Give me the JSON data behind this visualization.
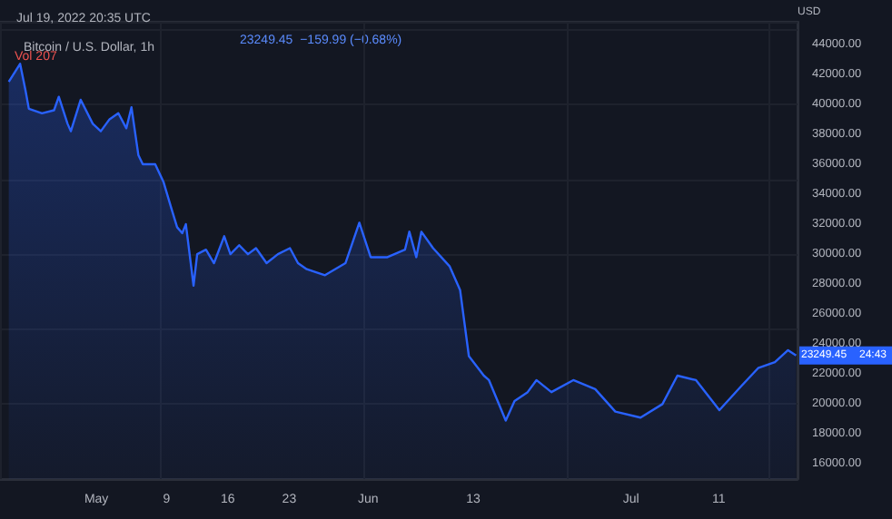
{
  "chart_data": {
    "type": "area",
    "title": "Bitcoin / U.S. Dollar, 1h",
    "subtitle": "Jul 19, 2022 20:35 UTC",
    "ylabel": "USD",
    "annotations": [
      "23249.45  −159.99 (−0.68%)",
      "Vol 207",
      {
        "text": "23249.45",
        "x": "2022-07-19T20:00",
        "y": 23249.45
      },
      "24:43"
    ],
    "x": [
      "2022-04-21T00:00",
      "2022-04-22T07:00",
      "2022-04-22T22:00",
      "2022-04-23T07:00",
      "2022-04-24T19:00",
      "2022-04-26T04:00",
      "2022-04-26T17:00",
      "2022-04-27T17:00",
      "2022-04-28T02:00",
      "2022-04-29T05:00",
      "2022-04-30T14:00",
      "2022-05-01T12:00",
      "2022-05-02T12:00",
      "2022-05-03T12:00",
      "2022-05-04T10:00",
      "2022-05-05T00:00",
      "2022-05-05T19:00",
      "2022-05-06T07:00",
      "2022-05-07T17:00",
      "2022-05-08T16:00",
      "2022-05-09T14:00",
      "2022-05-10T05:00",
      "2022-05-10T19:00",
      "2022-05-11T05:00",
      "2022-05-12T02:00",
      "2022-05-12T12:00",
      "2022-05-13T12:00",
      "2022-05-14T10:00",
      "2022-05-15T14:00",
      "2022-05-16T07:00",
      "2022-05-17T07:00",
      "2022-05-18T07:00",
      "2022-05-19T05:00",
      "2022-05-20T10:00",
      "2022-05-21T17:00",
      "2022-05-23T02:00",
      "2022-05-24T00:00",
      "2022-05-25T00:00",
      "2022-05-27T02:00",
      "2022-05-29T10:00",
      "2022-05-31T00:00",
      "2022-06-01T07:00",
      "2022-06-03T05:00",
      "2022-06-05T05:00",
      "2022-06-05T17:00",
      "2022-06-06T12:00",
      "2022-06-07T02:00",
      "2022-06-08T10:00",
      "2022-06-10T07:00",
      "2022-06-11T12:00",
      "2022-06-12T12:00",
      "2022-06-14T05:00",
      "2022-06-14T19:00",
      "2022-06-16T17:00",
      "2022-06-17T17:00",
      "2022-06-19T05:00",
      "2022-06-20T05:00",
      "2022-06-21T22:00",
      "2022-06-24T10:00",
      "2022-06-26T22:00",
      "2022-06-29T05:00",
      "2022-07-02T02:00",
      "2022-07-04T14:00",
      "2022-07-06T07:00",
      "2022-07-08T10:00",
      "2022-07-11T02:00",
      "2022-07-13T14:00",
      "2022-07-15T12:00",
      "2022-07-17T10:00",
      "2022-07-18T22:00",
      "2022-07-19T20:00"
    ],
    "series": [
      {
        "color": "#2962ff",
        "values": [
          41500,
          42700,
          40900,
          39700,
          39400,
          39600,
          40500,
          38700,
          38200,
          40300,
          38700,
          38200,
          39000,
          39400,
          38400,
          39800,
          36600,
          36000,
          36000,
          34800,
          33000,
          31800,
          31400,
          32000,
          27900,
          30000,
          30300,
          29400,
          31200,
          30000,
          30600,
          30000,
          30400,
          29400,
          30000,
          30400,
          29400,
          29000,
          28600,
          29400,
          32100,
          29800,
          29800,
          30300,
          31500,
          29800,
          31500,
          30400,
          29200,
          27600,
          23200,
          21900,
          21600,
          18900,
          20200,
          20800,
          21600,
          20800,
          21600,
          21000,
          19500,
          19100,
          20000,
          21900,
          21600,
          19600,
          21200,
          22400,
          22800,
          23600,
          23249.45
        ]
      }
    ],
    "xlim": [
      "2022-04-20T00:00",
      "2022-07-20T00:00"
    ],
    "xticks": [
      {
        "value": "2022-05-01",
        "label": "May"
      },
      {
        "value": "2022-05-09",
        "label": "9"
      },
      {
        "value": "2022-05-16",
        "label": "16"
      },
      {
        "value": "2022-05-23",
        "label": "23"
      },
      {
        "value": "2022-06-01",
        "label": "Jun"
      },
      {
        "value": "2022-06-13",
        "label": "13"
      },
      {
        "value": "2022-07-01",
        "label": "Jul"
      },
      {
        "value": "2022-07-11",
        "label": "11"
      }
    ],
    "ylim": [
      15000,
      45500
    ],
    "yticks": [
      {
        "value": 16000,
        "label": "16000.00"
      },
      {
        "value": 18000,
        "label": "18000.00"
      },
      {
        "value": 20000,
        "label": "20000.00"
      },
      {
        "value": 22000,
        "label": "22000.00"
      },
      {
        "value": 24000,
        "label": "24000.00"
      },
      {
        "value": 26000,
        "label": "26000.00"
      },
      {
        "value": 28000,
        "label": "28000.00"
      },
      {
        "value": 30000,
        "label": "30000.00"
      },
      {
        "value": 32000,
        "label": "32000.00"
      },
      {
        "value": 34000,
        "label": "34000.00"
      },
      {
        "value": 36000,
        "label": "36000.00"
      },
      {
        "value": 38000,
        "label": "38000.00"
      },
      {
        "value": 40000,
        "label": "40000.00"
      },
      {
        "value": 42000,
        "label": "42000.00"
      },
      {
        "value": 44000,
        "label": "44000.00"
      }
    ],
    "grid": true
  }
}
